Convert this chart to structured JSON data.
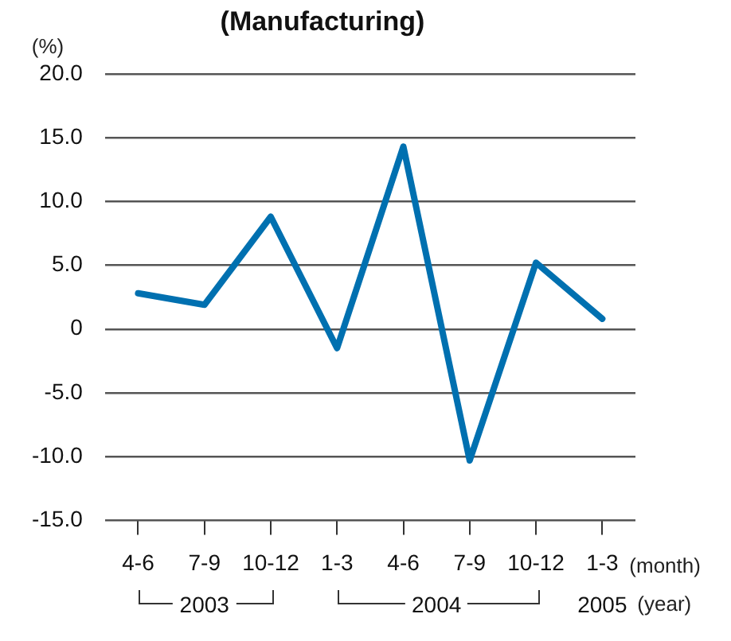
{
  "chart_data": {
    "type": "line",
    "title": "(Manufacturing)",
    "ylabel": "(%)",
    "categories": [
      "4-6",
      "7-9",
      "10-12",
      "1-3",
      "4-6",
      "7-9",
      "10-12",
      "1-3"
    ],
    "series": [
      {
        "color": "#0070b0",
        "values": [
          2.8,
          1.9,
          8.8,
          -1.5,
          14.3,
          -10.3,
          5.2,
          0.8
        ]
      }
    ],
    "ylim": [
      -15,
      20
    ],
    "yticks": [
      {
        "value": -15,
        "label": "-15.0"
      },
      {
        "value": -10,
        "label": "-10.0"
      },
      {
        "value": -5,
        "label": "-5.0"
      },
      0,
      {
        "value": 5,
        "label": "5.0"
      },
      {
        "value": 10,
        "label": "10.0"
      },
      {
        "value": 15,
        "label": "15.0"
      },
      {
        "value": 20,
        "label": "20.0"
      }
    ],
    "grid": "y",
    "legend": false,
    "marker": "none",
    "line_style": "solid",
    "annotations": [
      "(month)",
      "2003",
      "2004",
      "2005",
      "(year)"
    ]
  }
}
